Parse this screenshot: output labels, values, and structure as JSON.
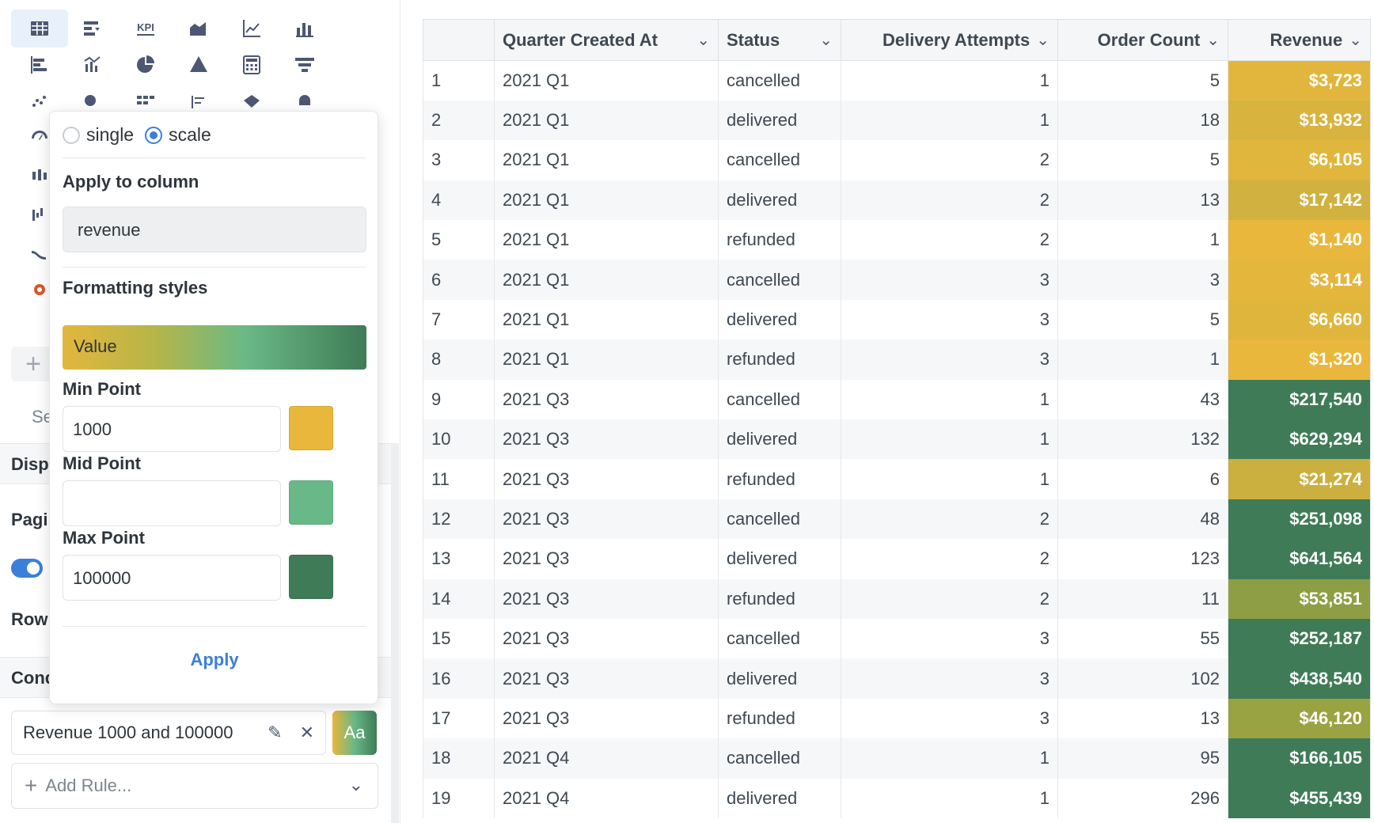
{
  "viz_picker": {
    "icons": [
      {
        "name": "table-icon",
        "active": true
      },
      {
        "name": "pivot-table-icon"
      },
      {
        "name": "kpi-icon",
        "text": "KPI"
      },
      {
        "name": "area-chart-icon"
      },
      {
        "name": "line-chart-icon"
      },
      {
        "name": "bar-chart-icon"
      },
      {
        "name": "row-chart-icon"
      },
      {
        "name": "combo-chart-icon"
      },
      {
        "name": "pie-chart-icon"
      },
      {
        "name": "pyramid-chart-icon"
      },
      {
        "name": "calculator-icon"
      },
      {
        "name": "funnel-icon"
      },
      {
        "name": "scatter-chart-icon"
      },
      {
        "name": "bubble-chart-icon"
      },
      {
        "name": "grid-chart-icon"
      },
      {
        "name": "list-chart-icon"
      },
      {
        "name": "map-region-icon"
      },
      {
        "name": "map-pin-icon"
      },
      {
        "name": "gauge-icon"
      },
      {
        "name": "box-plot-icon"
      },
      {
        "name": "waterfall-icon"
      },
      {
        "name": "sankey-icon"
      },
      {
        "name": "donut-icon"
      }
    ]
  },
  "sidebar": {
    "search_hint": "Se",
    "display_section": "Disp",
    "pagination_label": "Pagi",
    "row_label": "Row",
    "conditional_section": "Cond",
    "rule_label": "Revenue 1000 and 100000",
    "rule_swatch_text": "Aa",
    "add_rule_label": "Add Rule..."
  },
  "popover": {
    "mode_single": "single",
    "mode_scale": "scale",
    "selected_mode": "scale",
    "apply_to_label": "Apply to column",
    "column_value": "revenue",
    "formatting_label": "Formatting styles",
    "style_value": "Value",
    "min_label": "Min Point",
    "min_value": "1000",
    "mid_label": "Mid Point",
    "mid_value": "",
    "max_label": "Max Point",
    "max_value": "100000",
    "min_color": "#e8b73c",
    "mid_color": "#69b888",
    "max_color": "#3f7b57",
    "apply_label": "Apply"
  },
  "table": {
    "columns": [
      "",
      "Quarter Created At",
      "Status",
      "Delivery Attempts",
      "Order Count",
      "Revenue"
    ],
    "rows": [
      {
        "n": "1",
        "quarter": "2021 Q1",
        "status": "cancelled",
        "attempts": "1",
        "orders": "5",
        "revenue": "$3,723",
        "color": "#e2b63c"
      },
      {
        "n": "2",
        "quarter": "2021 Q1",
        "status": "delivered",
        "attempts": "1",
        "orders": "18",
        "revenue": "$13,932",
        "color": "#d8b33e"
      },
      {
        "n": "3",
        "quarter": "2021 Q1",
        "status": "cancelled",
        "attempts": "2",
        "orders": "5",
        "revenue": "$6,105",
        "color": "#e0b63c"
      },
      {
        "n": "4",
        "quarter": "2021 Q1",
        "status": "delivered",
        "attempts": "2",
        "orders": "13",
        "revenue": "$17,142",
        "color": "#d1b13f"
      },
      {
        "n": "5",
        "quarter": "2021 Q1",
        "status": "refunded",
        "attempts": "2",
        "orders": "1",
        "revenue": "$1,140",
        "color": "#e8b73b"
      },
      {
        "n": "6",
        "quarter": "2021 Q1",
        "status": "cancelled",
        "attempts": "3",
        "orders": "3",
        "revenue": "$3,114",
        "color": "#e4b63c"
      },
      {
        "n": "7",
        "quarter": "2021 Q1",
        "status": "delivered",
        "attempts": "3",
        "orders": "5",
        "revenue": "$6,660",
        "color": "#dfb53c"
      },
      {
        "n": "8",
        "quarter": "2021 Q1",
        "status": "refunded",
        "attempts": "3",
        "orders": "1",
        "revenue": "$1,320",
        "color": "#e8b73b"
      },
      {
        "n": "9",
        "quarter": "2021 Q3",
        "status": "cancelled",
        "attempts": "1",
        "orders": "43",
        "revenue": "$217,540",
        "color": "#3f7b57"
      },
      {
        "n": "10",
        "quarter": "2021 Q3",
        "status": "delivered",
        "attempts": "1",
        "orders": "132",
        "revenue": "$629,294",
        "color": "#3f7b57"
      },
      {
        "n": "11",
        "quarter": "2021 Q3",
        "status": "refunded",
        "attempts": "1",
        "orders": "6",
        "revenue": "$21,274",
        "color": "#cbb03f"
      },
      {
        "n": "12",
        "quarter": "2021 Q3",
        "status": "cancelled",
        "attempts": "2",
        "orders": "48",
        "revenue": "$251,098",
        "color": "#3f7b57"
      },
      {
        "n": "13",
        "quarter": "2021 Q3",
        "status": "delivered",
        "attempts": "2",
        "orders": "123",
        "revenue": "$641,564",
        "color": "#3f7b57"
      },
      {
        "n": "14",
        "quarter": "2021 Q3",
        "status": "refunded",
        "attempts": "2",
        "orders": "11",
        "revenue": "$53,851",
        "color": "#8e9e44"
      },
      {
        "n": "15",
        "quarter": "2021 Q3",
        "status": "cancelled",
        "attempts": "3",
        "orders": "55",
        "revenue": "$252,187",
        "color": "#3f7b57"
      },
      {
        "n": "16",
        "quarter": "2021 Q3",
        "status": "delivered",
        "attempts": "3",
        "orders": "102",
        "revenue": "$438,540",
        "color": "#3f7b57"
      },
      {
        "n": "17",
        "quarter": "2021 Q3",
        "status": "refunded",
        "attempts": "3",
        "orders": "13",
        "revenue": "$46,120",
        "color": "#9aa342"
      },
      {
        "n": "18",
        "quarter": "2021 Q4",
        "status": "cancelled",
        "attempts": "1",
        "orders": "95",
        "revenue": "$166,105",
        "color": "#3f7b57"
      },
      {
        "n": "19",
        "quarter": "2021 Q4",
        "status": "delivered",
        "attempts": "1",
        "orders": "296",
        "revenue": "$455,439",
        "color": "#3f7b57"
      }
    ]
  }
}
